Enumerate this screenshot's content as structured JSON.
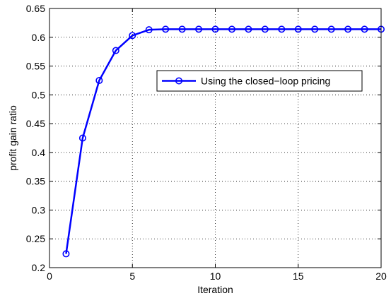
{
  "chart_data": {
    "type": "line",
    "title": "",
    "xlabel": "Iteration",
    "ylabel": "profit gain ratio",
    "xlim": [
      0,
      20
    ],
    "ylim": [
      0.2,
      0.65
    ],
    "xticks": [
      0,
      5,
      10,
      15,
      20
    ],
    "xtick_labels": [
      "0",
      "5",
      "10",
      "15",
      "20"
    ],
    "yticks": [
      0.2,
      0.25,
      0.3,
      0.35,
      0.4,
      0.45,
      0.5,
      0.55,
      0.6,
      0.65
    ],
    "ytick_labels": [
      "0.2",
      "0.25",
      "0.3",
      "0.35",
      "0.4",
      "0.45",
      "0.5",
      "0.55",
      "0.6",
      "0.65"
    ],
    "grid": true,
    "legend_position": "upper-right-center",
    "series": [
      {
        "name": "Using the closed−loop pricing",
        "color": "#0000ff",
        "marker": "circle",
        "x": [
          1,
          2,
          3,
          4,
          5,
          6,
          7,
          8,
          9,
          10,
          11,
          12,
          13,
          14,
          15,
          16,
          17,
          18,
          19,
          20
        ],
        "y": [
          0.224,
          0.425,
          0.525,
          0.577,
          0.603,
          0.613,
          0.614,
          0.614,
          0.614,
          0.614,
          0.614,
          0.614,
          0.614,
          0.614,
          0.614,
          0.614,
          0.614,
          0.614,
          0.614,
          0.614
        ]
      }
    ]
  }
}
